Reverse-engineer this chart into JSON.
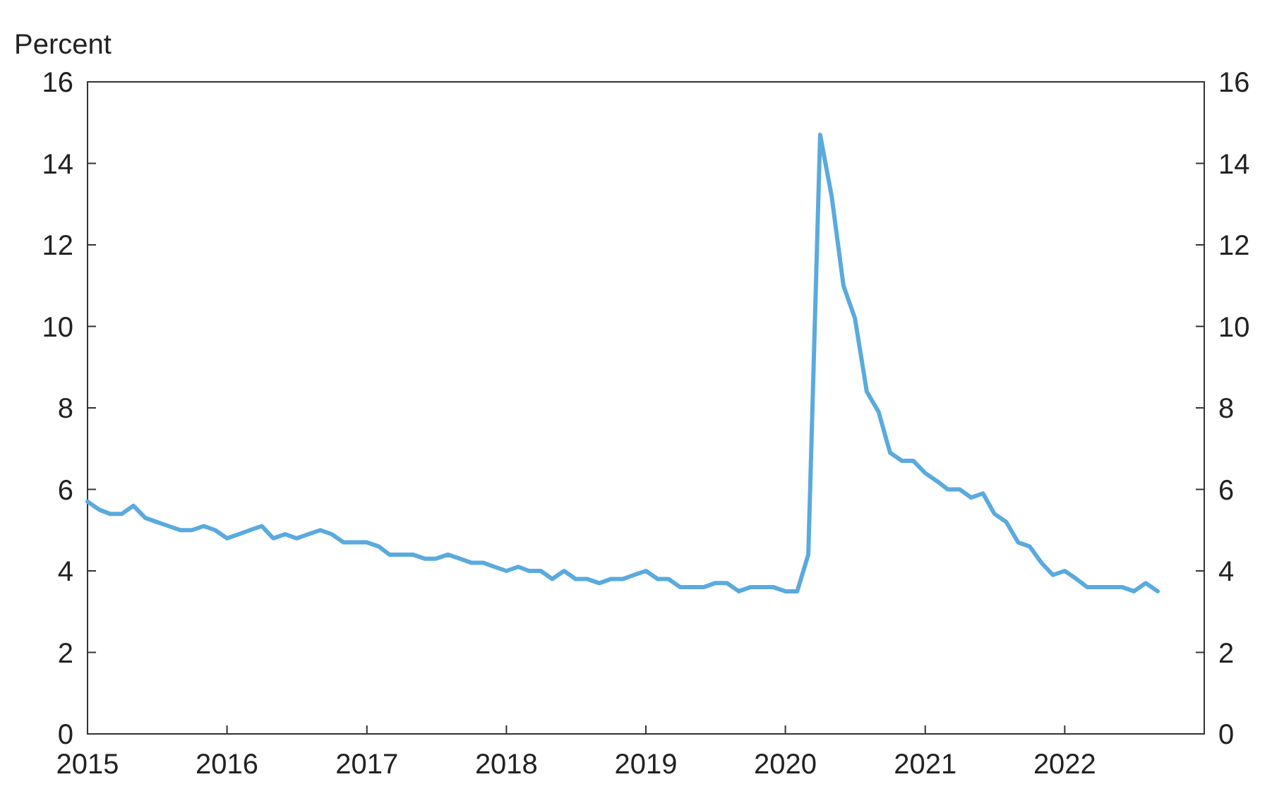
{
  "chart_data": {
    "type": "line",
    "ylabel": "Percent",
    "x": [
      "2015-01",
      "2015-02",
      "2015-03",
      "2015-04",
      "2015-05",
      "2015-06",
      "2015-07",
      "2015-08",
      "2015-09",
      "2015-10",
      "2015-11",
      "2015-12",
      "2016-01",
      "2016-02",
      "2016-03",
      "2016-04",
      "2016-05",
      "2016-06",
      "2016-07",
      "2016-08",
      "2016-09",
      "2016-10",
      "2016-11",
      "2016-12",
      "2017-01",
      "2017-02",
      "2017-03",
      "2017-04",
      "2017-05",
      "2017-06",
      "2017-07",
      "2017-08",
      "2017-09",
      "2017-10",
      "2017-11",
      "2017-12",
      "2018-01",
      "2018-02",
      "2018-03",
      "2018-04",
      "2018-05",
      "2018-06",
      "2018-07",
      "2018-08",
      "2018-09",
      "2018-10",
      "2018-11",
      "2018-12",
      "2019-01",
      "2019-02",
      "2019-03",
      "2019-04",
      "2019-05",
      "2019-06",
      "2019-07",
      "2019-08",
      "2019-09",
      "2019-10",
      "2019-11",
      "2019-12",
      "2020-01",
      "2020-02",
      "2020-03",
      "2020-04",
      "2020-05",
      "2020-06",
      "2020-07",
      "2020-08",
      "2020-09",
      "2020-10",
      "2020-11",
      "2020-12",
      "2021-01",
      "2021-02",
      "2021-03",
      "2021-04",
      "2021-05",
      "2021-06",
      "2021-07",
      "2021-08",
      "2021-09",
      "2021-10",
      "2021-11",
      "2021-12",
      "2022-01",
      "2022-02",
      "2022-03",
      "2022-04",
      "2022-05",
      "2022-06",
      "2022-07",
      "2022-08",
      "2022-09"
    ],
    "series": [
      {
        "color": "#5aaade",
        "values": [
          5.7,
          5.5,
          5.4,
          5.4,
          5.6,
          5.3,
          5.2,
          5.1,
          5.0,
          5.0,
          5.1,
          5.0,
          4.8,
          4.9,
          5.0,
          5.1,
          4.8,
          4.9,
          4.8,
          4.9,
          5.0,
          4.9,
          4.7,
          4.7,
          4.7,
          4.6,
          4.4,
          4.4,
          4.4,
          4.3,
          4.3,
          4.4,
          4.3,
          4.2,
          4.2,
          4.1,
          4.0,
          4.1,
          4.0,
          4.0,
          3.8,
          4.0,
          3.8,
          3.8,
          3.7,
          3.8,
          3.8,
          3.9,
          4.0,
          3.8,
          3.8,
          3.6,
          3.6,
          3.6,
          3.7,
          3.7,
          3.5,
          3.6,
          3.6,
          3.6,
          3.5,
          3.5,
          4.4,
          14.7,
          13.2,
          11.0,
          10.2,
          8.4,
          7.9,
          6.9,
          6.7,
          6.7,
          6.4,
          6.2,
          6.0,
          6.0,
          5.8,
          5.9,
          5.4,
          5.2,
          4.7,
          4.6,
          4.2,
          3.9,
          4.0,
          3.8,
          3.6,
          3.6,
          3.6,
          3.6,
          3.5,
          3.7,
          3.5
        ]
      }
    ],
    "xlim": [
      "2015-01",
      "2023-01"
    ],
    "xticks": [
      "2015",
      "2016",
      "2017",
      "2018",
      "2019",
      "2020",
      "2021",
      "2022"
    ],
    "ylim": [
      0,
      16
    ],
    "yticks": [
      0,
      2,
      4,
      6,
      8,
      10,
      12,
      14,
      16
    ],
    "y2lim": [
      0,
      16
    ],
    "y2ticks": [
      0,
      2,
      4,
      6,
      8,
      10,
      12,
      14,
      16
    ],
    "line_style": "solid"
  }
}
